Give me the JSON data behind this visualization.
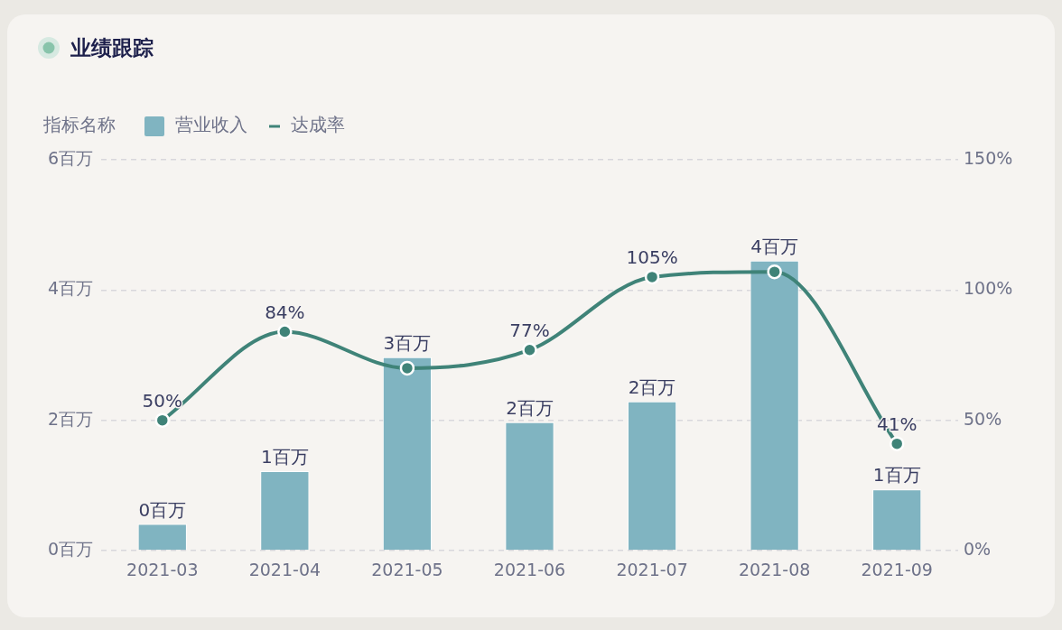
{
  "chart_data": {
    "type": "bar",
    "title": "业绩跟踪",
    "legend_title": "指标名称",
    "legend": "top left",
    "grid": "y",
    "categories": [
      "2021-03",
      "2021-04",
      "2021-05",
      "2021-06",
      "2021-07",
      "2021-08",
      "2021-09"
    ],
    "series": [
      {
        "name": "营业收入",
        "color": "#80b4c1",
        "values": [
          0.41,
          1.22,
          2.97,
          1.97,
          2.29,
          4.45,
          0.94
        ],
        "value_labels": [
          "0百万",
          "1百万",
          "3百万",
          "2百万",
          "2百万",
          "4百万",
          "1百万"
        ]
      },
      {
        "name": "达成率",
        "type": "line",
        "axis": "y2",
        "color": "#3f8378",
        "marker": "circle",
        "values": [
          50,
          84,
          70,
          77,
          105,
          107,
          41
        ],
        "value_labels": [
          "50%",
          "84%",
          null,
          "77%",
          "105%",
          null,
          "41%"
        ]
      }
    ],
    "ylim": [
      0,
      6
    ],
    "yticks": [
      {
        "value": 0,
        "label": "0百万"
      },
      {
        "value": 2,
        "label": "2百万"
      },
      {
        "value": 4,
        "label": "4百万"
      },
      {
        "value": 6,
        "label": "6百万"
      }
    ],
    "y2lim": [
      0,
      150
    ],
    "y2ticks": [
      {
        "value": 0,
        "label": "0%"
      },
      {
        "value": 50,
        "label": "50%"
      },
      {
        "value": 100,
        "label": "100%"
      },
      {
        "value": 150,
        "label": "150%"
      }
    ]
  }
}
